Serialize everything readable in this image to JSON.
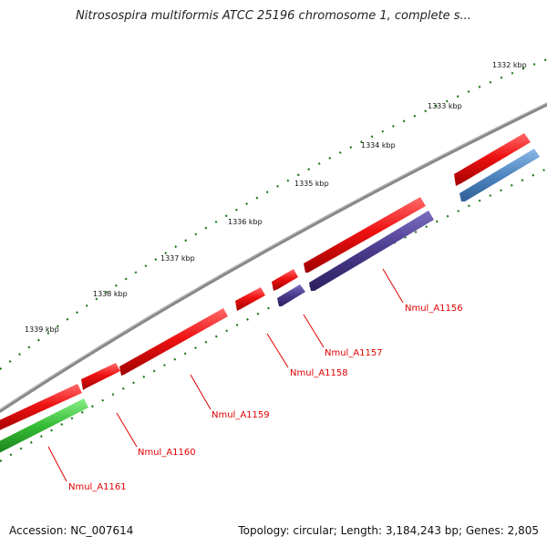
{
  "title": "Nitrosospira multiformis ATCC 25196 chromosome 1, complete s...",
  "accession": "Accession: NC_007614",
  "summary": "Topology: circular; Length: 3,184,243 bp; Genes: 2,805",
  "ticks": [
    {
      "label": "1332 kbp"
    },
    {
      "label": "1333 kbp"
    },
    {
      "label": "1334 kbp"
    },
    {
      "label": "1335 kbp"
    },
    {
      "label": "1336 kbp"
    },
    {
      "label": "1337 kbp"
    },
    {
      "label": "1338 kbp"
    },
    {
      "label": "1339 kbp"
    }
  ],
  "genes": [
    {
      "label": "Nmul_A1156"
    },
    {
      "label": "Nmul_A1157"
    },
    {
      "label": "Nmul_A1158"
    },
    {
      "label": "Nmul_A1159"
    },
    {
      "label": "Nmul_A1160"
    },
    {
      "label": "Nmul_A1161"
    }
  ],
  "colors": {
    "backbone": "#777777",
    "cds_forward": "#ee1111",
    "cds_reverse_purple": "#4a3a8c",
    "cds_reverse_blue": "#4f86c0",
    "cds_reverse_green": "#33bb33",
    "tick": "#1a7a1a",
    "label": "#e00000"
  }
}
